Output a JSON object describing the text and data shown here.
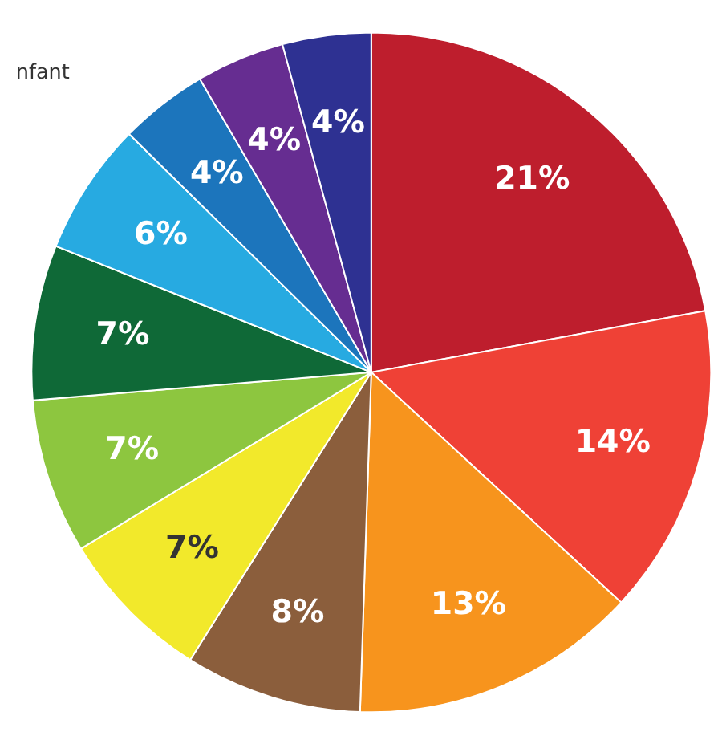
{
  "chart_data": {
    "type": "pie",
    "categories": [
      null,
      null,
      null,
      null,
      null,
      null,
      null,
      null,
      null,
      null,
      null
    ],
    "values": [
      21,
      14,
      13,
      8,
      7,
      7,
      7,
      6,
      4,
      4,
      4
    ],
    "colors": [
      "#be1e2d",
      "#ef4136",
      "#f7941d",
      "#8b5e3c",
      "#f2e92b",
      "#8dc63f",
      "#0f6937",
      "#27aae1",
      "#1c75bc",
      "#662d91",
      "#2e3192"
    ],
    "value_labels": [
      "21%",
      "14%",
      "13%",
      "8%",
      "7%",
      "7%",
      "7%",
      "6%",
      "4%",
      "4%",
      "4%"
    ],
    "annotations": [
      "nfant"
    ],
    "legend": false
  }
}
